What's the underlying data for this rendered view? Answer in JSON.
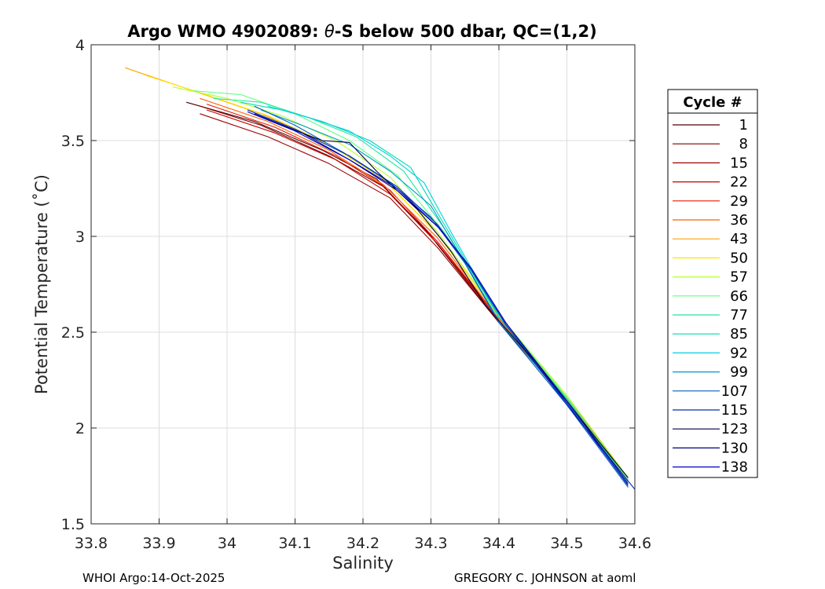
{
  "chart_data": {
    "type": "line",
    "title_prefix": "Argo WMO 4902089: ",
    "title_theta": "θ",
    "title_suffix": "-S below 500 dbar,  QC=(1,2)",
    "xlabel": "Salinity",
    "ylabel": "Potential Temperature (˚C)",
    "xlim": [
      33.8,
      34.6
    ],
    "ylim": [
      1.5,
      4.0
    ],
    "xticks": [
      "33.8",
      "33.9",
      "34",
      "34.1",
      "34.2",
      "34.3",
      "34.4",
      "34.5",
      "34.6"
    ],
    "yticks": [
      "1.5",
      "2",
      "2.5",
      "3",
      "3.5",
      "4"
    ],
    "grid": true,
    "legend_title": "Cycle #",
    "legend_placement": "right",
    "series": [
      {
        "name": "1",
        "color": "#550000",
        "x": [
          33.94,
          34.04,
          34.14,
          34.22,
          34.3,
          34.4,
          34.5,
          34.59
        ],
        "y": [
          3.7,
          3.6,
          3.45,
          3.3,
          3.0,
          2.55,
          2.15,
          1.72
        ]
      },
      {
        "name": "8",
        "color": "#7a0000",
        "x": [
          33.96,
          34.05,
          34.15,
          34.23,
          34.31,
          34.4,
          34.5,
          34.59
        ],
        "y": [
          3.68,
          3.58,
          3.42,
          3.26,
          2.97,
          2.56,
          2.15,
          1.73
        ]
      },
      {
        "name": "15",
        "color": "#9a0000",
        "x": [
          33.96,
          34.06,
          34.15,
          34.24,
          34.31,
          34.4,
          34.5,
          34.59
        ],
        "y": [
          3.64,
          3.52,
          3.38,
          3.2,
          2.94,
          2.55,
          2.14,
          1.72
        ]
      },
      {
        "name": "22",
        "color": "#c40000",
        "x": [
          33.97,
          34.07,
          34.16,
          34.24,
          34.31,
          34.4,
          34.5,
          34.59
        ],
        "y": [
          3.66,
          3.54,
          3.4,
          3.22,
          2.96,
          2.56,
          2.15,
          1.73
        ]
      },
      {
        "name": "29",
        "color": "#e81800",
        "x": [
          33.97,
          34.07,
          34.16,
          34.24,
          34.31,
          34.4,
          34.5,
          34.59
        ],
        "y": [
          3.69,
          3.57,
          3.42,
          3.24,
          2.97,
          2.57,
          2.16,
          1.74
        ]
      },
      {
        "name": "36",
        "color": "#ff6000",
        "x": [
          33.96,
          34.06,
          34.15,
          34.23,
          34.31,
          34.4,
          34.5,
          34.59
        ],
        "y": [
          3.72,
          3.6,
          3.45,
          3.27,
          2.99,
          2.57,
          2.16,
          1.73
        ]
      },
      {
        "name": "43",
        "color": "#ffa000",
        "x": [
          33.85,
          33.95,
          34.05,
          34.15,
          34.23,
          34.31,
          34.4,
          34.5,
          34.59
        ],
        "y": [
          3.88,
          3.76,
          3.64,
          3.48,
          3.3,
          3.01,
          2.58,
          2.16,
          1.73
        ]
      },
      {
        "name": "50",
        "color": "#ffe400",
        "x": [
          33.88,
          33.96,
          34.06,
          34.15,
          34.23,
          34.31,
          34.4,
          34.5,
          34.59
        ],
        "y": [
          3.84,
          3.75,
          3.63,
          3.48,
          3.3,
          3.01,
          2.58,
          2.16,
          1.73
        ]
      },
      {
        "name": "57",
        "color": "#b6ff30",
        "x": [
          33.92,
          34.0,
          34.08,
          34.16,
          34.24,
          34.31,
          34.4,
          34.5,
          34.59
        ],
        "y": [
          3.78,
          3.72,
          3.63,
          3.5,
          3.31,
          3.02,
          2.59,
          2.17,
          1.74
        ]
      },
      {
        "name": "66",
        "color": "#60ff80",
        "x": [
          33.95,
          34.02,
          34.1,
          34.18,
          34.25,
          34.32,
          34.4,
          34.5,
          34.59
        ],
        "y": [
          3.76,
          3.74,
          3.64,
          3.5,
          3.32,
          3.02,
          2.59,
          2.16,
          1.73
        ]
      },
      {
        "name": "77",
        "color": "#20e8a0",
        "x": [
          33.98,
          34.05,
          34.12,
          34.19,
          34.26,
          34.32,
          34.4,
          34.5,
          34.59
        ],
        "y": [
          3.72,
          3.7,
          3.62,
          3.52,
          3.34,
          3.04,
          2.58,
          2.15,
          1.72
        ]
      },
      {
        "name": "85",
        "color": "#00d8b0",
        "x": [
          34.02,
          34.08,
          34.14,
          34.21,
          34.27,
          34.32,
          34.4,
          34.5,
          34.59
        ],
        "y": [
          3.7,
          3.66,
          3.6,
          3.5,
          3.36,
          3.06,
          2.58,
          2.15,
          1.72
        ]
      },
      {
        "name": "92",
        "color": "#00d0e0",
        "x": [
          34.06,
          34.12,
          34.18,
          34.24,
          34.29,
          34.33,
          34.4,
          34.5,
          34.59
        ],
        "y": [
          3.68,
          3.62,
          3.55,
          3.42,
          3.28,
          3.02,
          2.58,
          2.14,
          1.71
        ]
      },
      {
        "name": "99",
        "color": "#0098c8",
        "x": [
          34.05,
          34.11,
          34.18,
          34.24,
          34.3,
          34.34,
          34.4,
          34.5,
          34.59
        ],
        "y": [
          3.66,
          3.58,
          3.48,
          3.34,
          3.16,
          2.92,
          2.56,
          2.13,
          1.7
        ]
      },
      {
        "name": "107",
        "color": "#0060c0",
        "x": [
          34.04,
          34.1,
          34.17,
          34.24,
          34.3,
          34.35,
          34.4,
          34.5,
          34.59
        ],
        "y": [
          3.68,
          3.58,
          3.44,
          3.28,
          3.1,
          2.86,
          2.55,
          2.12,
          1.69
        ]
      },
      {
        "name": "115",
        "color": "#0030b0",
        "x": [
          34.03,
          34.1,
          34.18,
          34.25,
          34.31,
          34.36,
          34.41,
          34.5,
          34.6
        ],
        "y": [
          3.66,
          3.56,
          3.42,
          3.26,
          3.06,
          2.82,
          2.54,
          2.12,
          1.68
        ]
      },
      {
        "name": "123",
        "color": "#000040",
        "x": [
          34.08,
          34.14,
          34.18,
          34.22,
          34.28,
          34.33,
          34.38,
          34.46,
          34.54,
          34.59
        ],
        "y": [
          3.58,
          3.5,
          3.49,
          3.34,
          3.14,
          2.92,
          2.64,
          2.32,
          1.96,
          1.74
        ]
      },
      {
        "name": "130",
        "color": "#000080",
        "x": [
          34.04,
          34.11,
          34.18,
          34.25,
          34.31,
          34.36,
          34.41,
          34.5,
          34.59
        ],
        "y": [
          3.64,
          3.54,
          3.4,
          3.24,
          3.05,
          2.83,
          2.55,
          2.14,
          1.71
        ]
      },
      {
        "name": "138",
        "color": "#0000c8",
        "x": [
          34.03,
          34.1,
          34.18,
          34.25,
          34.31,
          34.36,
          34.41,
          34.5,
          34.59
        ],
        "y": [
          3.65,
          3.55,
          3.4,
          3.25,
          3.05,
          2.83,
          2.55,
          2.13,
          1.7
        ]
      }
    ]
  },
  "footer": {
    "left": "WHOI Argo:14-Oct-2025",
    "right": "GREGORY C. JOHNSON at aoml"
  }
}
